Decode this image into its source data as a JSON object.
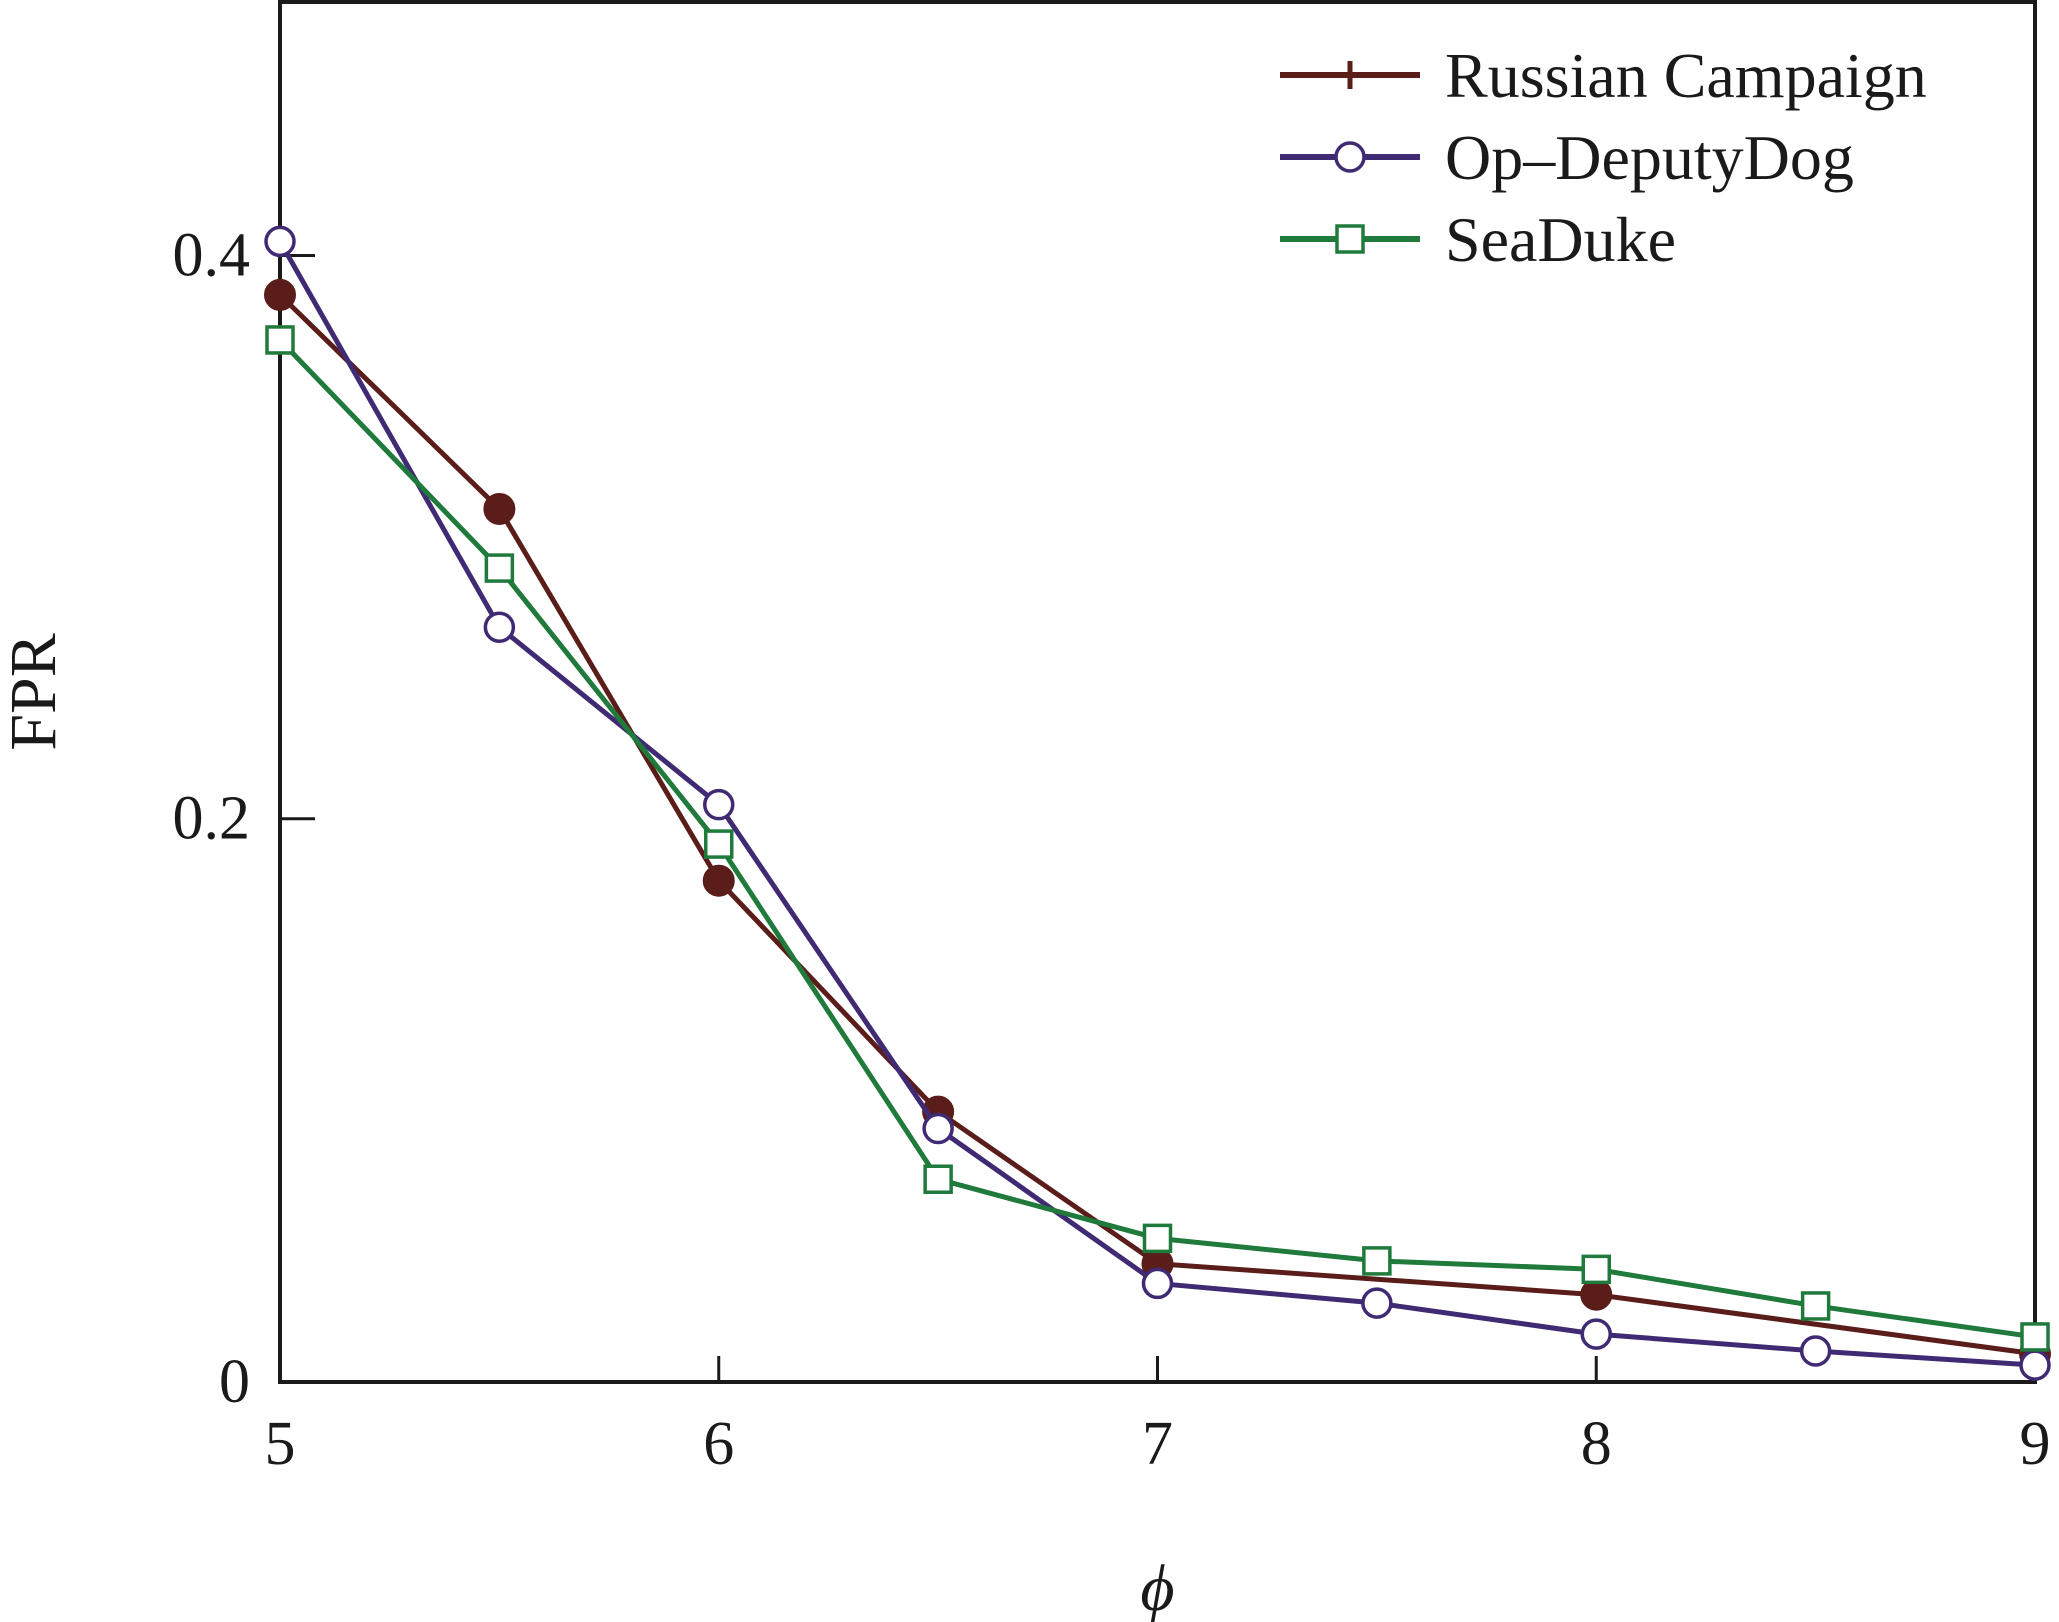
{
  "chart_data": {
    "type": "line",
    "title": "",
    "xlabel": "ϕ",
    "ylabel": "FPR",
    "xlim": [
      5,
      9
    ],
    "ylim": [
      0,
      0.49
    ],
    "xticks": [
      5,
      6,
      7,
      8,
      9
    ],
    "xtick_labels": [
      "5",
      "6",
      "7",
      "8",
      "9"
    ],
    "yticks": [
      0,
      0.2,
      0.4
    ],
    "ytick_labels": [
      "0",
      "0.2",
      "0.4"
    ],
    "grid": false,
    "legend_position": "top-right",
    "series": [
      {
        "name": "Russian Campaign",
        "color": "#5a1d1a",
        "marker": "filled-circle",
        "x": [
          5,
          5.5,
          6,
          6.5,
          7,
          8,
          9
        ],
        "y": [
          0.386,
          0.31,
          0.178,
          0.096,
          0.042,
          0.031,
          0.01
        ]
      },
      {
        "name": "Op–DeputyDog",
        "color": "#3f2a73",
        "marker": "open-circle",
        "x": [
          5,
          5.5,
          6,
          6.5,
          7,
          7.5,
          8,
          8.5,
          9
        ],
        "y": [
          0.405,
          0.268,
          0.205,
          0.09,
          0.035,
          0.028,
          0.017,
          0.011,
          0.006
        ]
      },
      {
        "name": "SeaDuke",
        "color": "#1f7a3c",
        "marker": "open-square",
        "x": [
          5,
          5.5,
          6,
          6.5,
          7,
          7.5,
          8,
          8.5,
          9
        ],
        "y": [
          0.37,
          0.289,
          0.191,
          0.072,
          0.051,
          0.043,
          0.04,
          0.027,
          0.016
        ]
      }
    ]
  }
}
